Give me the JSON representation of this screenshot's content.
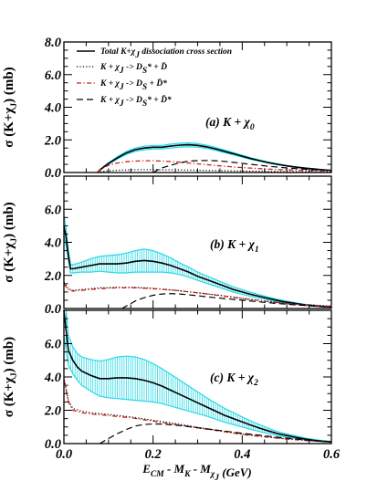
{
  "chart_data": [
    {
      "type": "line",
      "panel_label": "(a) K + χ",
      "panel_label_sub": "0",
      "ylabel": "σ (K+χ",
      "ylabel_sub": "J",
      "ylabel_tail": ") (mb)",
      "ylim": [
        0,
        8
      ],
      "yticks": [
        "0.0",
        "2.0",
        "4.0",
        "6.0",
        "8.0"
      ],
      "xlim": [
        0,
        0.6
      ],
      "legend": [
        {
          "text": "Total K+χJ dissociation cross section",
          "style": "solid"
        },
        {
          "text": "K + χJ -> DS* + D̄",
          "style": "dotted"
        },
        {
          "text": "K + χJ -> DS + D̄*",
          "style": "dashdot"
        },
        {
          "text": "K + χJ -> DS* + D̄*",
          "style": "dashed"
        }
      ],
      "series": [
        {
          "name": "Total K+χJ dissociation cross section",
          "style": "solid",
          "x": [
            0.075,
            0.08,
            0.09,
            0.1,
            0.12,
            0.14,
            0.16,
            0.18,
            0.2,
            0.22,
            0.24,
            0.26,
            0.28,
            0.3,
            0.32,
            0.34,
            0.36,
            0.38,
            0.4,
            0.42,
            0.44,
            0.46,
            0.48,
            0.5,
            0.52,
            0.54,
            0.56,
            0.58,
            0.6
          ],
          "y": [
            0.0,
            0.15,
            0.35,
            0.55,
            0.9,
            1.2,
            1.4,
            1.5,
            1.55,
            1.55,
            1.62,
            1.68,
            1.7,
            1.66,
            1.57,
            1.45,
            1.3,
            1.15,
            1.0,
            0.85,
            0.72,
            0.6,
            0.5,
            0.41,
            0.33,
            0.27,
            0.22,
            0.17,
            0.13
          ],
          "err": [
            0,
            0.02,
            0.03,
            0.05,
            0.07,
            0.09,
            0.1,
            0.11,
            0.11,
            0.11,
            0.12,
            0.12,
            0.12,
            0.11,
            0.1,
            0.09,
            0.08,
            0.07,
            0.06,
            0.05,
            0.04,
            0.03,
            0.03,
            0.02,
            0.02,
            0.02,
            0.01,
            0.01,
            0.01
          ]
        },
        {
          "name": "K + χJ -> DS* + D̄",
          "style": "dotted",
          "x": [
            0.075,
            0.08,
            0.1,
            0.12,
            0.15,
            0.18,
            0.2,
            0.22,
            0.25,
            0.28,
            0.32,
            0.36,
            0.4,
            0.45,
            0.5,
            0.55,
            0.6
          ],
          "y": [
            0.0,
            0.05,
            0.1,
            0.14,
            0.17,
            0.18,
            0.18,
            0.17,
            0.16,
            0.15,
            0.13,
            0.11,
            0.09,
            0.07,
            0.05,
            0.04,
            0.03
          ]
        },
        {
          "name": "K + χJ -> DS + D̄*",
          "style": "dashdot",
          "x": [
            0.075,
            0.08,
            0.09,
            0.1,
            0.12,
            0.14,
            0.16,
            0.18,
            0.2,
            0.22,
            0.24,
            0.26,
            0.28,
            0.3,
            0.32,
            0.35,
            0.38,
            0.4,
            0.45,
            0.5,
            0.55,
            0.6
          ],
          "y": [
            0.0,
            0.15,
            0.3,
            0.45,
            0.58,
            0.66,
            0.7,
            0.72,
            0.72,
            0.7,
            0.67,
            0.63,
            0.58,
            0.53,
            0.48,
            0.41,
            0.34,
            0.3,
            0.22,
            0.16,
            0.12,
            0.09
          ]
        },
        {
          "name": "K + χJ -> DS* + D̄*",
          "style": "dashed",
          "x": [
            0.2,
            0.21,
            0.22,
            0.24,
            0.26,
            0.28,
            0.3,
            0.32,
            0.34,
            0.36,
            0.38,
            0.4,
            0.42,
            0.44,
            0.46,
            0.48,
            0.5,
            0.52,
            0.54,
            0.56,
            0.58,
            0.6
          ],
          "y": [
            0.0,
            0.15,
            0.28,
            0.45,
            0.6,
            0.7,
            0.73,
            0.74,
            0.72,
            0.68,
            0.62,
            0.56,
            0.5,
            0.44,
            0.38,
            0.33,
            0.28,
            0.24,
            0.2,
            0.17,
            0.14,
            0.12
          ]
        }
      ]
    },
    {
      "type": "line",
      "panel_label": "(b) K + χ",
      "panel_label_sub": "1",
      "ylabel": "σ (K+χ",
      "ylabel_sub": "J",
      "ylabel_tail": ") (mb)",
      "ylim": [
        0,
        8
      ],
      "yticks": [
        "0.0",
        "2.0",
        "4.0",
        "6.0"
      ],
      "xlim": [
        0,
        0.6
      ],
      "series": [
        {
          "name": "Total",
          "style": "solid",
          "x": [
            0.0,
            0.005,
            0.01,
            0.015,
            0.02,
            0.04,
            0.06,
            0.08,
            0.1,
            0.12,
            0.14,
            0.16,
            0.18,
            0.2,
            0.22,
            0.24,
            0.26,
            0.28,
            0.3,
            0.32,
            0.34,
            0.36,
            0.38,
            0.4,
            0.42,
            0.44,
            0.46,
            0.48,
            0.5,
            0.52,
            0.54,
            0.56,
            0.58,
            0.6
          ],
          "y": [
            5.0,
            4.3,
            3.2,
            2.4,
            2.4,
            2.5,
            2.6,
            2.7,
            2.7,
            2.7,
            2.75,
            2.85,
            2.9,
            2.85,
            2.75,
            2.6,
            2.4,
            2.2,
            1.95,
            1.75,
            1.55,
            1.35,
            1.15,
            1.0,
            0.85,
            0.72,
            0.6,
            0.48,
            0.38,
            0.3,
            0.22,
            0.17,
            0.12,
            0.1
          ],
          "err": [
            0.6,
            0.5,
            0.3,
            0.25,
            0.25,
            0.3,
            0.4,
            0.45,
            0.5,
            0.55,
            0.6,
            0.65,
            0.7,
            0.65,
            0.55,
            0.45,
            0.35,
            0.3,
            0.25,
            0.22,
            0.2,
            0.18,
            0.16,
            0.14,
            0.12,
            0.1,
            0.08,
            0.07,
            0.06,
            0.05,
            0.04,
            0.03,
            0.02,
            0.02
          ]
        },
        {
          "name": "DS* + D̄",
          "style": "dotted",
          "x": [
            0.0,
            0.005,
            0.01,
            0.02,
            0.04,
            0.08,
            0.12,
            0.16,
            0.2,
            0.25,
            0.3,
            0.35,
            0.4,
            0.45,
            0.5,
            0.55,
            0.6
          ],
          "y": [
            1.6,
            1.4,
            1.2,
            1.1,
            1.15,
            1.25,
            1.28,
            1.28,
            1.22,
            1.1,
            0.95,
            0.8,
            0.62,
            0.45,
            0.32,
            0.22,
            0.15
          ]
        },
        {
          "name": "DS + D̄*",
          "style": "dashdot",
          "x": [
            0.0,
            0.005,
            0.01,
            0.02,
            0.04,
            0.08,
            0.12,
            0.16,
            0.2,
            0.25,
            0.3,
            0.35,
            0.4,
            0.45,
            0.5,
            0.55,
            0.6
          ],
          "y": [
            1.5,
            1.3,
            1.15,
            1.05,
            1.1,
            1.2,
            1.25,
            1.25,
            1.2,
            1.1,
            0.95,
            0.78,
            0.6,
            0.44,
            0.3,
            0.2,
            0.13
          ]
        },
        {
          "name": "DS* + D̄*",
          "style": "dashed",
          "x": [
            0.13,
            0.14,
            0.15,
            0.16,
            0.18,
            0.2,
            0.22,
            0.24,
            0.26,
            0.28,
            0.3,
            0.33,
            0.36,
            0.4,
            0.44,
            0.48,
            0.52,
            0.56,
            0.6
          ],
          "y": [
            0.0,
            0.15,
            0.3,
            0.45,
            0.65,
            0.8,
            0.88,
            0.9,
            0.88,
            0.83,
            0.77,
            0.68,
            0.6,
            0.5,
            0.4,
            0.3,
            0.22,
            0.15,
            0.1
          ]
        }
      ]
    },
    {
      "type": "line",
      "panel_label": "(c) K + χ",
      "panel_label_sub": "2",
      "ylabel": "σ (K+χ",
      "ylabel_sub": "J",
      "ylabel_tail": ") (mb)",
      "ylim": [
        0,
        8
      ],
      "yticks": [
        "0.0",
        "2.0",
        "4.0",
        "6.0"
      ],
      "xlim": [
        0,
        0.6
      ],
      "xticks": [
        "0.0",
        "0.2",
        "0.4",
        "0.6"
      ],
      "xlabel": "E",
      "xlabel_parts": [
        "CM",
        "- M",
        "K",
        "- M",
        "χJ",
        "(GeV)"
      ],
      "series": [
        {
          "name": "Total",
          "style": "solid",
          "x": [
            0.0,
            0.005,
            0.01,
            0.02,
            0.03,
            0.04,
            0.06,
            0.08,
            0.1,
            0.12,
            0.14,
            0.16,
            0.18,
            0.2,
            0.22,
            0.24,
            0.26,
            0.28,
            0.3,
            0.32,
            0.34,
            0.36,
            0.38,
            0.4,
            0.42,
            0.44,
            0.46,
            0.48,
            0.5,
            0.52,
            0.54,
            0.56,
            0.58,
            0.6
          ],
          "y": [
            8.0,
            6.8,
            5.6,
            5.0,
            4.6,
            4.35,
            4.1,
            3.9,
            3.9,
            3.95,
            3.95,
            3.9,
            3.8,
            3.65,
            3.45,
            3.2,
            2.95,
            2.7,
            2.45,
            2.2,
            1.95,
            1.7,
            1.5,
            1.3,
            1.1,
            0.92,
            0.75,
            0.6,
            0.48,
            0.38,
            0.28,
            0.2,
            0.14,
            0.1
          ],
          "err": [
            1.5,
            1.2,
            0.9,
            0.8,
            0.8,
            0.85,
            0.95,
            1.05,
            1.15,
            1.25,
            1.3,
            1.3,
            1.25,
            1.15,
            1.05,
            0.95,
            0.85,
            0.75,
            0.65,
            0.55,
            0.48,
            0.42,
            0.36,
            0.3,
            0.25,
            0.2,
            0.16,
            0.12,
            0.1,
            0.08,
            0.06,
            0.05,
            0.04,
            0.03
          ]
        },
        {
          "name": "DS* + D̄",
          "style": "dotted",
          "x": [
            0.0,
            0.005,
            0.01,
            0.02,
            0.04,
            0.06,
            0.1,
            0.15,
            0.2,
            0.25,
            0.3,
            0.35,
            0.4,
            0.45,
            0.5,
            0.55,
            0.6
          ],
          "y": [
            4.0,
            3.3,
            2.6,
            2.1,
            1.95,
            1.85,
            1.75,
            1.6,
            1.4,
            1.2,
            0.98,
            0.78,
            0.58,
            0.42,
            0.28,
            0.18,
            0.12
          ]
        },
        {
          "name": "DS + D̄*",
          "style": "dashdot",
          "x": [
            0.0,
            0.005,
            0.01,
            0.02,
            0.04,
            0.06,
            0.1,
            0.15,
            0.2,
            0.25,
            0.3,
            0.35,
            0.4,
            0.45,
            0.5,
            0.55,
            0.6
          ],
          "y": [
            3.8,
            3.2,
            2.5,
            2.0,
            1.85,
            1.78,
            1.68,
            1.55,
            1.35,
            1.15,
            0.95,
            0.75,
            0.55,
            0.4,
            0.27,
            0.17,
            0.11
          ]
        },
        {
          "name": "DS* + D̄*",
          "style": "dashed",
          "x": [
            0.08,
            0.09,
            0.1,
            0.12,
            0.14,
            0.16,
            0.18,
            0.2,
            0.22,
            0.24,
            0.26,
            0.28,
            0.3,
            0.33,
            0.36,
            0.4,
            0.44,
            0.48,
            0.52,
            0.56,
            0.6
          ],
          "y": [
            0.0,
            0.15,
            0.3,
            0.6,
            0.85,
            1.05,
            1.15,
            1.18,
            1.17,
            1.13,
            1.08,
            1.02,
            0.95,
            0.85,
            0.75,
            0.62,
            0.5,
            0.38,
            0.28,
            0.18,
            0.12
          ]
        }
      ]
    }
  ],
  "colors": {
    "total": "#000000",
    "error_band": "#27d9e6",
    "dotted": "#000000",
    "dashdot": "#cc1f1f",
    "dashed": "#000000",
    "axis": "#000000"
  }
}
